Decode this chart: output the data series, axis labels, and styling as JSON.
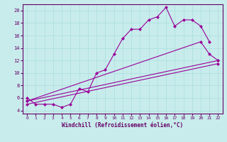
{
  "title": "",
  "xlabel": "Windchill (Refroidissement éolien,°C)",
  "bg_color": "#c8ecec",
  "line_color": "#990099",
  "grid_color": "#aadddd",
  "xlim": [
    -0.5,
    22.5
  ],
  "ylim": [
    3.5,
    21
  ],
  "xticks": [
    0,
    1,
    2,
    3,
    4,
    5,
    6,
    7,
    8,
    9,
    10,
    11,
    12,
    13,
    14,
    15,
    16,
    17,
    18,
    19,
    20,
    21,
    22
  ],
  "yticks": [
    4,
    6,
    8,
    10,
    12,
    14,
    16,
    18,
    20
  ],
  "line1_x": [
    0,
    1,
    2,
    3,
    4,
    5,
    6,
    7,
    8,
    9,
    10,
    11,
    12,
    13,
    14,
    15,
    16,
    17,
    18,
    19,
    20,
    21
  ],
  "line1_y": [
    6,
    5,
    5,
    5,
    4.5,
    5,
    7.5,
    7,
    10,
    10.5,
    13,
    15.5,
    17,
    17,
    18.5,
    19,
    20.5,
    17.5,
    18.5,
    18.5,
    17.5,
    15
  ],
  "line2_x": [
    0,
    22
  ],
  "line2_y": [
    5.5,
    12.0
  ],
  "line3_x": [
    0,
    22
  ],
  "line3_y": [
    5.0,
    11.5
  ],
  "line4_x": [
    0,
    20,
    21,
    22
  ],
  "line4_y": [
    5.5,
    15,
    13,
    12
  ],
  "markersize": 2.5,
  "linewidth": 0.8
}
